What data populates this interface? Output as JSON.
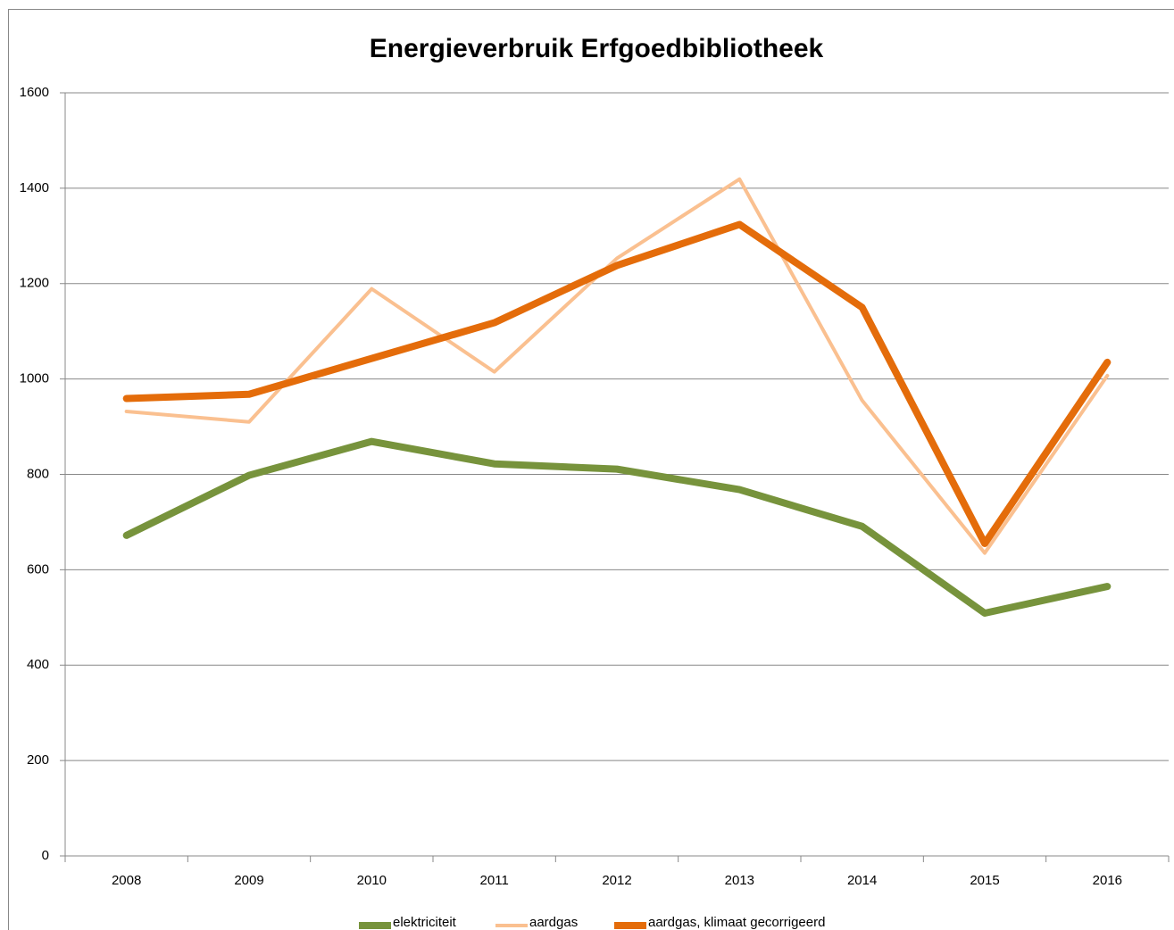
{
  "chart_data": {
    "type": "line",
    "title": "Energieverbruik Erfgoedbibliotheek",
    "categories": [
      "2008",
      "2009",
      "2010",
      "2011",
      "2012",
      "2013",
      "2014",
      "2015",
      "2016"
    ],
    "series": [
      {
        "name": "elektriciteit",
        "color": "#77933c",
        "width": 8,
        "values": [
          672,
          798,
          869,
          822,
          811,
          768,
          691,
          509,
          565
        ]
      },
      {
        "name": "aardgas",
        "color": "#fac090",
        "width": 4,
        "values": [
          932,
          910,
          1189,
          1015,
          1253,
          1419,
          955,
          635,
          1007
        ]
      },
      {
        "name": "aardgas, klimaat gecorrigeerd",
        "color": "#e46c0a",
        "width": 8,
        "values": [
          959,
          968,
          1043,
          1118,
          1238,
          1324,
          1150,
          655,
          1035
        ]
      }
    ],
    "ylim": [
      0,
      1600
    ],
    "yticks": [
      0,
      200,
      400,
      600,
      800,
      1000,
      1200,
      1400,
      1600
    ],
    "grid": true,
    "legend": "bottom"
  }
}
